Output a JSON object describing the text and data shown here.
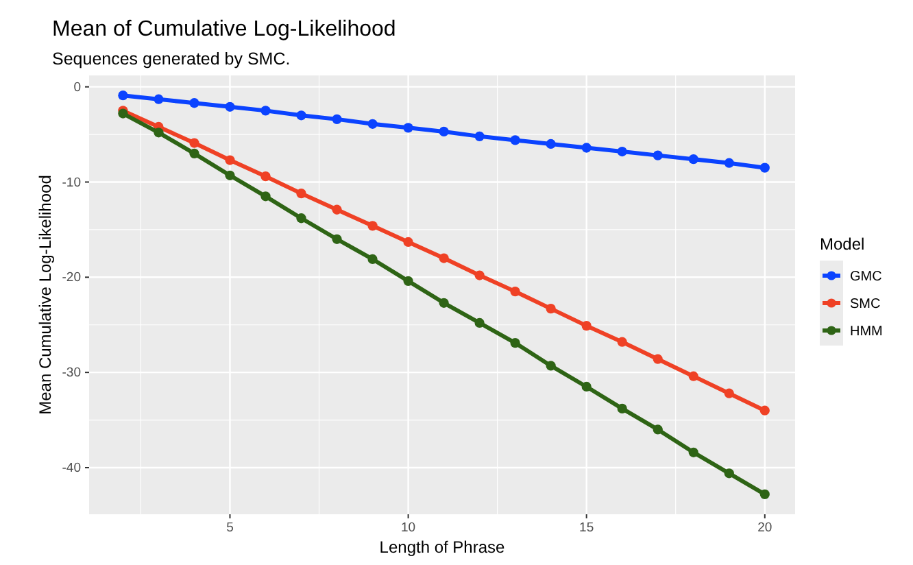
{
  "chart_data": {
    "type": "line",
    "title": "Mean of Cumulative Log-Likelihood",
    "subtitle": "Sequences generated by SMC.",
    "xlabel": "Length of Phrase",
    "ylabel": "Mean Cumulative Log-Likelihood",
    "legend_title": "Model",
    "legend": "right",
    "grid": true,
    "marker": "circle",
    "line_style": "solid",
    "x": [
      2,
      3,
      4,
      5,
      6,
      7,
      8,
      9,
      10,
      11,
      12,
      13,
      14,
      15,
      16,
      17,
      18,
      19,
      20
    ],
    "xlim": [
      1.05,
      20.85
    ],
    "xticks": [
      5,
      10,
      15,
      20
    ],
    "ylim": [
      -44.9,
      1.2
    ],
    "yticks": [
      -40,
      -30,
      -20,
      -10,
      0
    ],
    "series": [
      {
        "name": "GMC",
        "color": "#0b43ff",
        "values": [
          -0.9,
          -1.3,
          -1.7,
          -2.1,
          -2.5,
          -3.0,
          -3.4,
          -3.9,
          -4.3,
          -4.7,
          -5.2,
          -5.6,
          -6.0,
          -6.4,
          -6.8,
          -7.2,
          -7.6,
          -8.0,
          -8.5
        ]
      },
      {
        "name": "SMC",
        "color": "#ef4125",
        "values": [
          -2.5,
          -4.2,
          -5.9,
          -7.7,
          -9.4,
          -11.2,
          -12.9,
          -14.6,
          -16.3,
          -18.0,
          -19.8,
          -21.5,
          -23.3,
          -25.1,
          -26.8,
          -28.6,
          -30.4,
          -32.2,
          -34.0
        ]
      },
      {
        "name": "HMM",
        "color": "#2e6415",
        "values": [
          -2.8,
          -4.8,
          -7.0,
          -9.3,
          -11.5,
          -13.8,
          -16.0,
          -18.1,
          -20.4,
          -22.7,
          -24.8,
          -26.9,
          -29.3,
          -31.5,
          -33.8,
          -36.0,
          -38.4,
          -40.6,
          -42.8
        ]
      }
    ]
  }
}
